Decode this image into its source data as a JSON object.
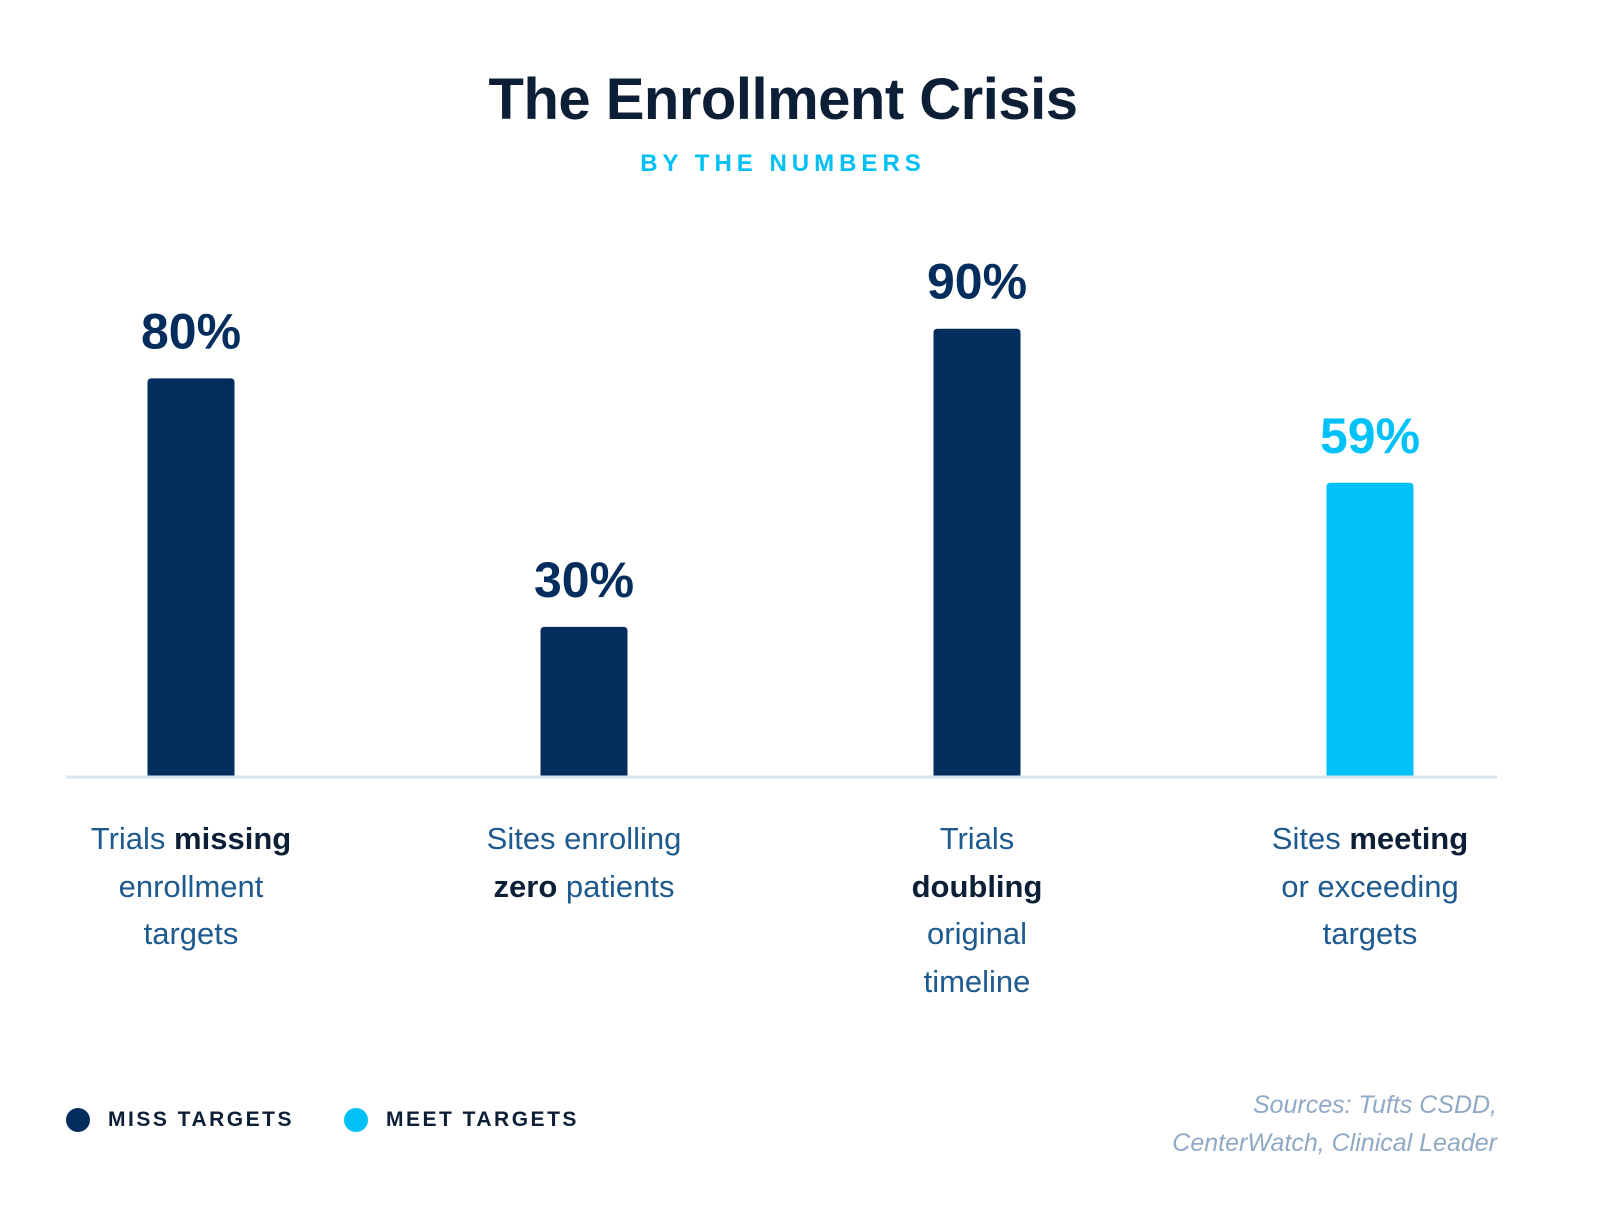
{
  "header": {
    "title": "The Enrollment Crisis",
    "subtitle": "BY THE NUMBERS"
  },
  "chart_data": {
    "type": "bar",
    "title": "The Enrollment Crisis",
    "subtitle": "BY THE NUMBERS",
    "ylim": [
      0,
      100
    ],
    "grid": false,
    "categories": [
      {
        "lines": [
          [
            {
              "t": "Trials ",
              "b": false
            },
            {
              "t": "missing",
              "b": true
            }
          ],
          [
            {
              "t": "enrollment",
              "b": false
            }
          ],
          [
            {
              "t": "targets",
              "b": false
            }
          ]
        ]
      },
      {
        "lines": [
          [
            {
              "t": "Sites enrolling",
              "b": false
            }
          ],
          [
            {
              "t": "zero",
              "b": true
            },
            {
              "t": " patients",
              "b": false
            }
          ]
        ]
      },
      {
        "lines": [
          [
            {
              "t": "Trials",
              "b": false
            }
          ],
          [
            {
              "t": "doubling",
              "b": true
            }
          ],
          [
            {
              "t": "original",
              "b": false
            }
          ],
          [
            {
              "t": "timeline",
              "b": false
            }
          ]
        ]
      },
      {
        "lines": [
          [
            {
              "t": "Sites ",
              "b": false
            },
            {
              "t": "meeting",
              "b": true
            }
          ],
          [
            {
              "t": "or exceeding",
              "b": false
            }
          ],
          [
            {
              "t": "targets",
              "b": false
            }
          ]
        ]
      }
    ],
    "values": [
      80,
      30,
      90,
      59
    ],
    "value_labels": [
      "80%",
      "30%",
      "90%",
      "59%"
    ],
    "groups": [
      "miss",
      "miss",
      "miss",
      "meet"
    ],
    "legend": {
      "placement": "bottom-left",
      "items": [
        {
          "key": "miss",
          "label": "MISS TARGETS",
          "color": "#022d5c"
        },
        {
          "key": "meet",
          "label": "MEET TARGETS",
          "color": "#00c2f8"
        }
      ]
    }
  },
  "colors": {
    "axis": "#d6e6f3",
    "category_text": "#1f5a8f",
    "emphasis_text": "#0d1f36",
    "sources_text": "#90a9c5"
  },
  "sources": {
    "line1": "Sources: Tufts CSDD,",
    "line2": "CenterWatch, Clinical Leader"
  }
}
